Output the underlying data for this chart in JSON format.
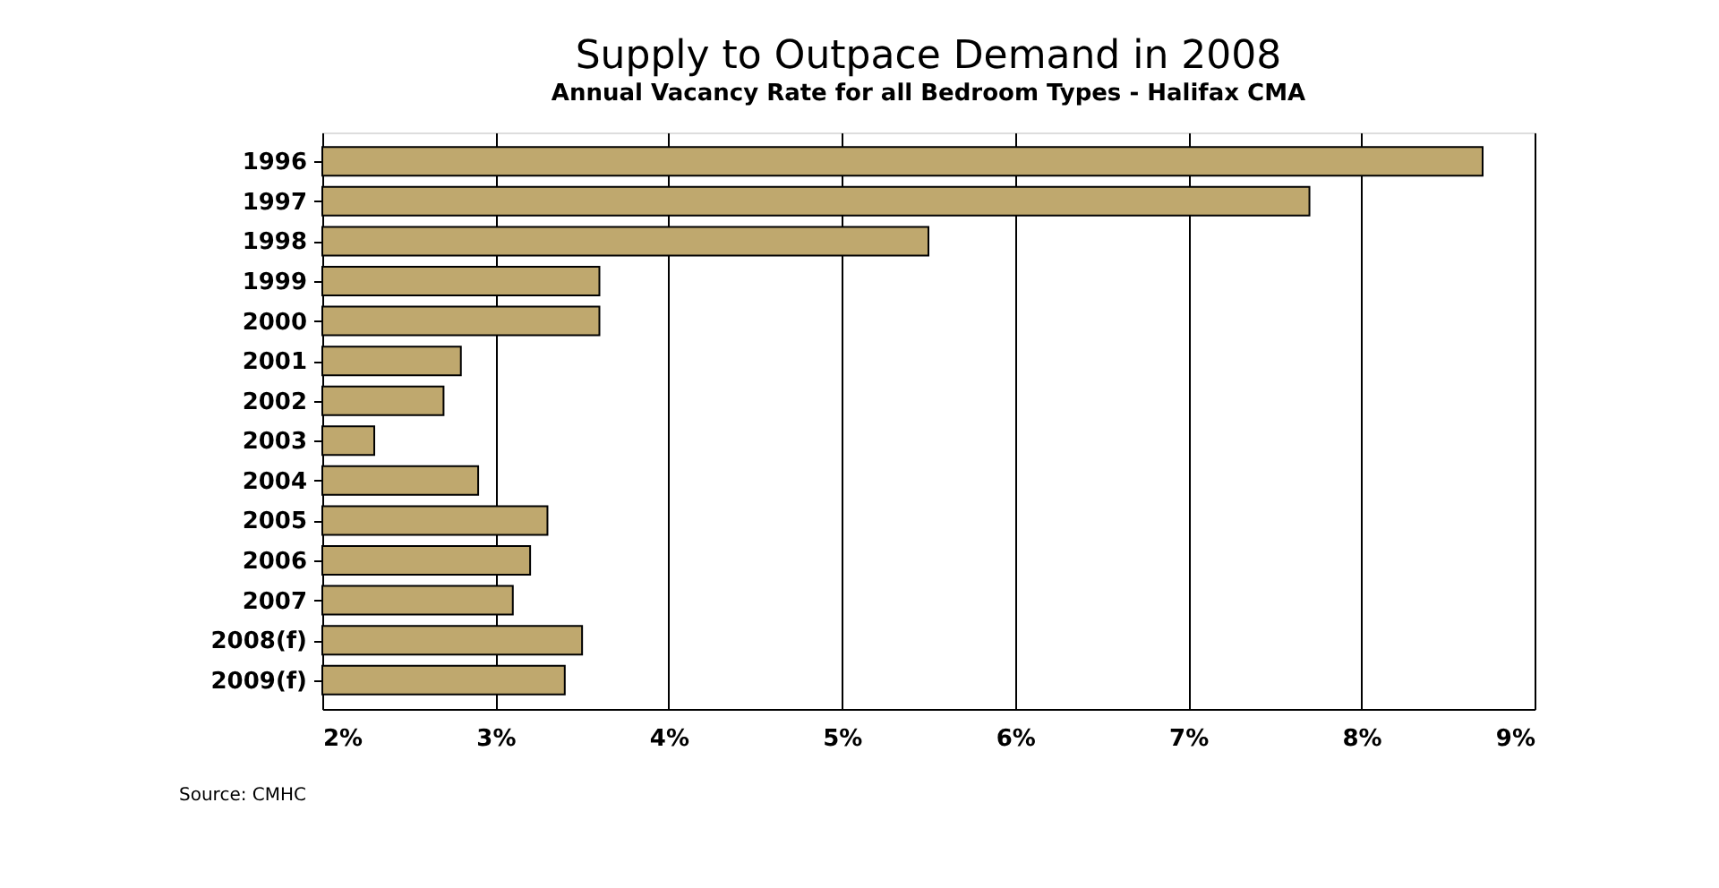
{
  "chart_data": {
    "type": "bar",
    "orientation": "horizontal",
    "title": "Supply to Outpace Demand in 2008",
    "subtitle": "Annual Vacancy Rate for all Bedroom Types - Halifax CMA",
    "categories": [
      "1996",
      "1997",
      "1998",
      "1999",
      "2000",
      "2001",
      "2002",
      "2003",
      "2004",
      "2005",
      "2006",
      "2007",
      "2008(f)",
      "2009(f)"
    ],
    "values": [
      8.7,
      7.7,
      5.5,
      3.6,
      3.6,
      2.8,
      2.7,
      2.3,
      2.9,
      3.3,
      3.2,
      3.1,
      3.5,
      3.4
    ],
    "color": "#bfa86e",
    "xlim": [
      2,
      9
    ],
    "xticks": [
      {
        "value": 2,
        "label": "2%"
      },
      {
        "value": 3,
        "label": "3%"
      },
      {
        "value": 4,
        "label": "4%"
      },
      {
        "value": 5,
        "label": "5%"
      },
      {
        "value": 6,
        "label": "6%"
      },
      {
        "value": 7,
        "label": "7%"
      },
      {
        "value": 8,
        "label": "8%"
      },
      {
        "value": 9,
        "label": "9%"
      }
    ],
    "grid": "x",
    "annotations": [
      "Source: CMHC"
    ]
  }
}
